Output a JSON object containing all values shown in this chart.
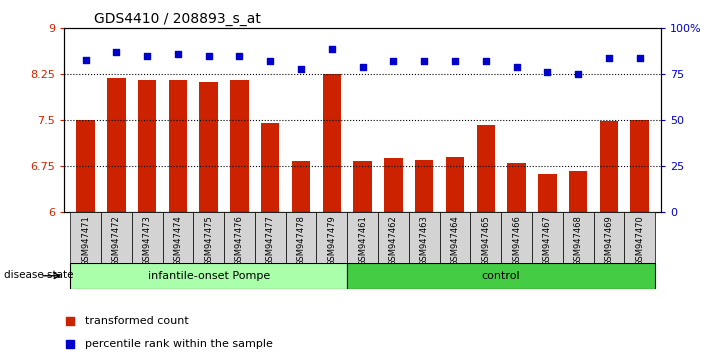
{
  "title": "GDS4410 / 208893_s_at",
  "samples": [
    "GSM947471",
    "GSM947472",
    "GSM947473",
    "GSM947474",
    "GSM947475",
    "GSM947476",
    "GSM947477",
    "GSM947478",
    "GSM947479",
    "GSM947461",
    "GSM947462",
    "GSM947463",
    "GSM947464",
    "GSM947465",
    "GSM947466",
    "GSM947467",
    "GSM947468",
    "GSM947469",
    "GSM947470"
  ],
  "bar_values": [
    7.5,
    8.19,
    8.15,
    8.16,
    8.13,
    8.16,
    7.45,
    6.83,
    8.25,
    6.83,
    6.88,
    6.86,
    6.9,
    7.43,
    6.8,
    6.62,
    6.68,
    7.49,
    7.5
  ],
  "percentile_values": [
    83,
    87,
    85,
    86,
    85,
    85,
    82,
    78,
    89,
    79,
    82,
    82,
    82,
    82,
    79,
    76,
    75,
    84,
    84
  ],
  "bar_color": "#CC2200",
  "dot_color": "#0000CC",
  "ylim_left": [
    6,
    9
  ],
  "ylim_right": [
    0,
    100
  ],
  "yticks_left": [
    6,
    6.75,
    7.5,
    8.25,
    9
  ],
  "ytick_labels_left": [
    "6",
    "6.75",
    "7.5",
    "8.25",
    "9"
  ],
  "yticks_right": [
    0,
    25,
    50,
    75,
    100
  ],
  "ytick_labels_right": [
    "0",
    "25",
    "50",
    "75",
    "100%"
  ],
  "hlines": [
    6.75,
    7.5,
    8.25
  ],
  "group1_label": "infantile-onset Pompe",
  "group2_label": "control",
  "group1_count": 9,
  "group2_count": 10,
  "disease_label": "disease state",
  "legend1": "transformed count",
  "legend2": "percentile rank within the sample",
  "group1_color": "#AAFFAA",
  "group2_color": "#44CC44",
  "tick_bg_color": "#D3D3D3"
}
